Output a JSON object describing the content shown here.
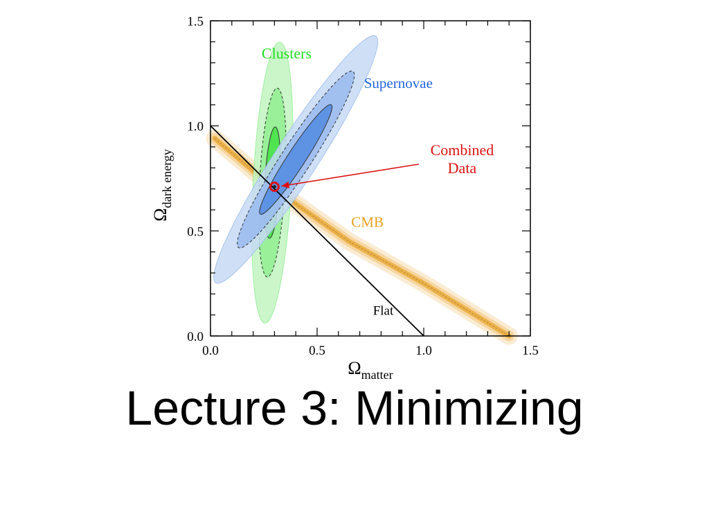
{
  "slide": {
    "title": "Lecture 3: Minimizing"
  },
  "chart_data": {
    "type": "scatter",
    "title": "",
    "xlabel": {
      "symbol": "Ω",
      "subscript": "matter"
    },
    "ylabel": {
      "symbol": "Ω",
      "subscript": "dark energy"
    },
    "xlim": [
      0,
      1.5
    ],
    "ylim": [
      0,
      1.5
    ],
    "x_ticks": [
      "0.0",
      "0.5",
      "1.0",
      "1.5"
    ],
    "y_ticks": [
      "0.0",
      "0.5",
      "1.0",
      "1.5"
    ],
    "grid": false,
    "series": [
      {
        "name": "Clusters",
        "kind": "confidence-ellipses",
        "color": "#22dd22",
        "center": [
          0.29,
          0.73
        ],
        "levels": [
          {
            "rx": 0.035,
            "ry": 0.265,
            "angle_deg": -87
          },
          {
            "rx": 0.06,
            "ry": 0.45,
            "angle_deg": -87
          },
          {
            "rx": 0.09,
            "ry": 0.67,
            "angle_deg": -87
          }
        ],
        "label_at": [
          0.24,
          1.32
        ]
      },
      {
        "name": "Supernovae",
        "kind": "confidence-ellipses",
        "color": "#3377dd",
        "center": [
          0.4,
          0.84
        ],
        "levels": [
          {
            "rx": 0.042,
            "ry": 0.31,
            "angle_deg": -57
          },
          {
            "rx": 0.07,
            "ry": 0.5,
            "angle_deg": -57
          },
          {
            "rx": 0.1,
            "ry": 0.7,
            "angle_deg": -57
          }
        ],
        "label_at": [
          0.72,
          1.18
        ]
      },
      {
        "name": "CMB",
        "kind": "band",
        "color": "#e8a020",
        "path": [
          [
            0.02,
            0.94
          ],
          [
            0.3,
            0.7
          ],
          [
            0.65,
            0.45
          ],
          [
            1.0,
            0.25
          ],
          [
            1.4,
            0.0
          ]
        ],
        "half_widths": [
          0.012,
          0.025,
          0.042
        ],
        "label_at": [
          0.66,
          0.52
        ]
      },
      {
        "name": "Combined Data",
        "kind": "point",
        "color": "#dd1111",
        "points": [
          [
            0.3,
            0.71
          ]
        ],
        "label_lines": [
          "Combined",
          "Data"
        ],
        "label_at": [
          1.18,
          0.85
        ]
      }
    ],
    "reference_lines": [
      {
        "name": "Flat",
        "color": "#000000",
        "points": [
          [
            0.0,
            1.0
          ],
          [
            1.0,
            0.0
          ]
        ],
        "label_at": [
          0.81,
          0.1
        ]
      }
    ]
  }
}
